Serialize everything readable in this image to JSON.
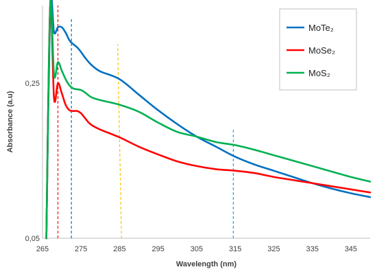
{
  "chart_data": {
    "type": "line",
    "xlabel": "Wavelength (nm)",
    "ylabel": "Absorbance (a.u)",
    "xlim": [
      265,
      350
    ],
    "ylim": [
      0.05,
      0.35
    ],
    "x_ticks": [
      265,
      275,
      285,
      295,
      305,
      315,
      325,
      335,
      345
    ],
    "y_ticks": [
      {
        "value": 0.05,
        "label": "0,05"
      },
      {
        "value": 0.25,
        "label": "0,25"
      }
    ],
    "legend_position": "top-right",
    "grid": false,
    "series": [
      {
        "name": "MoTe₂",
        "color": "#0070c0",
        "points": [
          [
            266,
            0.04
          ],
          [
            267,
            0.35
          ],
          [
            268,
            0.315
          ],
          [
            269,
            0.322
          ],
          [
            270,
            0.322
          ],
          [
            271,
            0.315
          ],
          [
            272,
            0.305
          ],
          [
            273,
            0.3
          ],
          [
            274,
            0.296
          ],
          [
            275,
            0.29
          ],
          [
            276,
            0.283
          ],
          [
            277,
            0.277
          ],
          [
            278,
            0.272
          ],
          [
            280,
            0.265
          ],
          [
            285,
            0.255
          ],
          [
            290,
            0.235
          ],
          [
            295,
            0.215
          ],
          [
            300,
            0.197
          ],
          [
            305,
            0.181
          ],
          [
            310,
            0.168
          ],
          [
            315,
            0.155
          ],
          [
            320,
            0.145
          ],
          [
            325,
            0.137
          ],
          [
            330,
            0.129
          ],
          [
            335,
            0.121
          ],
          [
            340,
            0.114
          ],
          [
            345,
            0.108
          ],
          [
            350,
            0.103
          ]
        ]
      },
      {
        "name": "MoSe₂",
        "color": "#ff0000",
        "points": [
          [
            266,
            0.04
          ],
          [
            267,
            0.35
          ],
          [
            268,
            0.23
          ],
          [
            269,
            0.25
          ],
          [
            270,
            0.237
          ],
          [
            271,
            0.222
          ],
          [
            272,
            0.215
          ],
          [
            273,
            0.214
          ],
          [
            274,
            0.214
          ],
          [
            275,
            0.211
          ],
          [
            276,
            0.205
          ],
          [
            277,
            0.199
          ],
          [
            278,
            0.195
          ],
          [
            280,
            0.19
          ],
          [
            285,
            0.18
          ],
          [
            290,
            0.168
          ],
          [
            295,
            0.158
          ],
          [
            300,
            0.149
          ],
          [
            305,
            0.143
          ],
          [
            310,
            0.139
          ],
          [
            315,
            0.137
          ],
          [
            320,
            0.134
          ],
          [
            325,
            0.129
          ],
          [
            330,
            0.125
          ],
          [
            335,
            0.121
          ],
          [
            340,
            0.117
          ],
          [
            345,
            0.113
          ],
          [
            350,
            0.109
          ]
        ]
      },
      {
        "name": "MoS₂",
        "color": "#00b050",
        "points": [
          [
            266,
            0.04
          ],
          [
            267,
            0.35
          ],
          [
            268,
            0.26
          ],
          [
            269,
            0.277
          ],
          [
            270,
            0.266
          ],
          [
            271,
            0.255
          ],
          [
            272,
            0.247
          ],
          [
            273,
            0.243
          ],
          [
            274,
            0.242
          ],
          [
            275,
            0.241
          ],
          [
            276,
            0.238
          ],
          [
            277,
            0.234
          ],
          [
            278,
            0.231
          ],
          [
            280,
            0.228
          ],
          [
            285,
            0.222
          ],
          [
            290,
            0.213
          ],
          [
            295,
            0.199
          ],
          [
            300,
            0.187
          ],
          [
            305,
            0.181
          ],
          [
            310,
            0.174
          ],
          [
            315,
            0.17
          ],
          [
            320,
            0.164
          ],
          [
            325,
            0.157
          ],
          [
            330,
            0.15
          ],
          [
            335,
            0.143
          ],
          [
            340,
            0.136
          ],
          [
            345,
            0.129
          ],
          [
            350,
            0.123
          ]
        ]
      }
    ],
    "markers": [
      {
        "x": 269,
        "color": "#ff0000",
        "y_from": 0.05,
        "y_to": 0.35
      },
      {
        "x": 272.5,
        "color": "#0070c0",
        "y_from": 0.05,
        "y_to": 0.335
      },
      {
        "x": 285,
        "color": "#ffc000",
        "y_from": 0.05,
        "y_to": 0.3,
        "x_top": 284.5,
        "x_bottom": 285.5
      },
      {
        "x": 314.5,
        "color": "#00b0f0",
        "y_from": 0.05,
        "y_to": 0.19
      }
    ]
  }
}
